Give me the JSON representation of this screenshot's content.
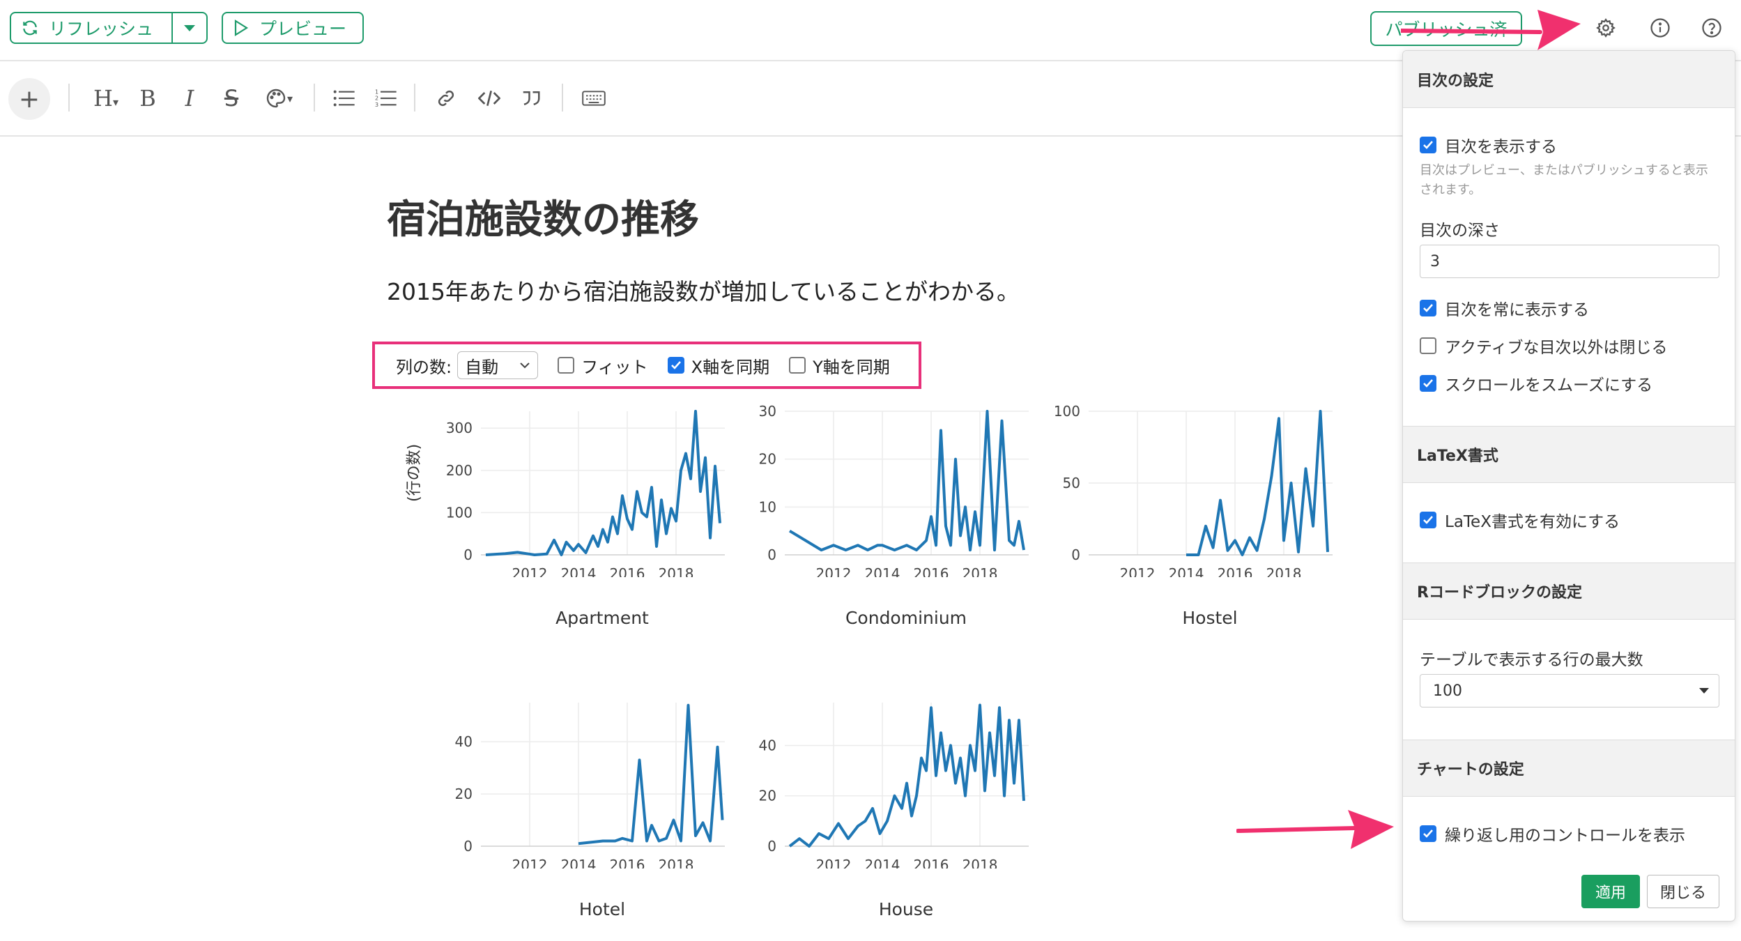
{
  "header": {
    "refresh_label": "リフレッシュ",
    "preview_label": "プレビュー",
    "publish_label": "パブリッシュ済"
  },
  "document": {
    "title": "宿泊施設数の推移",
    "description": "2015年あたりから宿泊施設数が増加していることがわかる。"
  },
  "controls": {
    "columns_label": "列の数:",
    "columns_value": "自動",
    "fit_label": "フィット",
    "fit_checked": false,
    "sync_x_label": "X軸を同期",
    "sync_x_checked": true,
    "sync_y_label": "Y軸を同期",
    "sync_y_checked": false
  },
  "y_axis_label": "(行の数)",
  "chart_data": [
    {
      "type": "line",
      "title": "Apartment",
      "ylabel": "(行の数)",
      "x_ticks": [
        "2012",
        "2014",
        "2016",
        "2018"
      ],
      "y_ticks": [
        0,
        100,
        200,
        300
      ],
      "ylim": [
        0,
        340
      ],
      "color": "#1f77b4",
      "x": [
        2010.2,
        2011.0,
        2011.5,
        2012.2,
        2012.7,
        2013.0,
        2013.3,
        2013.5,
        2013.8,
        2014.0,
        2014.3,
        2014.6,
        2014.8,
        2015.0,
        2015.2,
        2015.4,
        2015.6,
        2015.8,
        2016.0,
        2016.2,
        2016.4,
        2016.6,
        2016.8,
        2017.0,
        2017.2,
        2017.4,
        2017.6,
        2017.8,
        2018.0,
        2018.2,
        2018.4,
        2018.6,
        2018.8,
        2019.0,
        2019.2,
        2019.4,
        2019.6,
        2019.8
      ],
      "y": [
        0,
        3,
        6,
        0,
        2,
        35,
        0,
        30,
        10,
        25,
        5,
        45,
        20,
        60,
        30,
        90,
        50,
        140,
        85,
        60,
        150,
        100,
        90,
        160,
        20,
        130,
        50,
        110,
        80,
        200,
        240,
        180,
        340,
        150,
        230,
        40,
        210,
        75
      ]
    },
    {
      "type": "line",
      "title": "Condominium",
      "x_ticks": [
        "2012",
        "2014",
        "2016",
        "2018"
      ],
      "y_ticks": [
        0,
        10,
        20,
        30
      ],
      "ylim": [
        0,
        30
      ],
      "color": "#1f77b4",
      "x": [
        2010.2,
        2011.5,
        2012.0,
        2012.5,
        2013.0,
        2013.4,
        2013.8,
        2014.0,
        2014.5,
        2015.0,
        2015.4,
        2015.8,
        2016.0,
        2016.2,
        2016.4,
        2016.6,
        2016.8,
        2017.0,
        2017.2,
        2017.4,
        2017.6,
        2017.8,
        2018.0,
        2018.3,
        2018.6,
        2018.9,
        2019.2,
        2019.4,
        2019.6,
        2019.8
      ],
      "y": [
        5,
        1,
        2,
        1,
        2,
        1,
        2,
        2,
        1,
        2,
        1,
        3,
        8,
        2,
        26,
        6,
        2,
        20,
        4,
        10,
        1,
        9,
        2,
        30,
        1,
        28,
        3,
        2,
        7,
        1
      ]
    },
    {
      "type": "line",
      "title": "Hostel",
      "x_ticks": [
        "2012",
        "2014",
        "2016",
        "2018"
      ],
      "y_ticks": [
        0,
        50,
        100
      ],
      "ylim": [
        0,
        100
      ],
      "color": "#1f77b4",
      "x": [
        2014.0,
        2014.5,
        2014.8,
        2015.1,
        2015.4,
        2015.7,
        2016.0,
        2016.3,
        2016.6,
        2016.9,
        2017.2,
        2017.5,
        2017.8,
        2018.0,
        2018.3,
        2018.6,
        2018.9,
        2019.2,
        2019.5,
        2019.8
      ],
      "y": [
        0,
        0,
        20,
        5,
        38,
        3,
        10,
        0,
        12,
        3,
        25,
        55,
        95,
        10,
        50,
        2,
        60,
        20,
        100,
        2
      ]
    },
    {
      "type": "line",
      "title": "Hotel",
      "x_ticks": [
        "2012",
        "2014",
        "2016",
        "2018"
      ],
      "y_ticks": [
        0,
        20,
        40
      ],
      "ylim": [
        0,
        55
      ],
      "color": "#1f77b4",
      "x": [
        2014.0,
        2015.0,
        2015.5,
        2015.8,
        2016.2,
        2016.5,
        2016.8,
        2017.0,
        2017.3,
        2017.6,
        2017.9,
        2018.2,
        2018.5,
        2018.8,
        2019.1,
        2019.4,
        2019.7,
        2019.9
      ],
      "y": [
        1,
        2,
        2,
        3,
        2,
        33,
        2,
        8,
        2,
        3,
        10,
        2,
        54,
        4,
        9,
        2,
        38,
        10
      ]
    },
    {
      "type": "line",
      "title": "House",
      "x_ticks": [
        "2012",
        "2014",
        "2016",
        "2018"
      ],
      "y_ticks": [
        0,
        20,
        40
      ],
      "ylim": [
        0,
        57
      ],
      "color": "#1f77b4",
      "x": [
        2010.2,
        2010.6,
        2011.0,
        2011.4,
        2011.8,
        2012.2,
        2012.6,
        2013.0,
        2013.3,
        2013.6,
        2013.9,
        2014.2,
        2014.5,
        2014.8,
        2015.0,
        2015.2,
        2015.4,
        2015.6,
        2015.8,
        2016.0,
        2016.2,
        2016.4,
        2016.6,
        2016.8,
        2017.0,
        2017.2,
        2017.4,
        2017.6,
        2017.8,
        2018.0,
        2018.2,
        2018.4,
        2018.6,
        2018.8,
        2019.0,
        2019.2,
        2019.4,
        2019.6,
        2019.8
      ],
      "y": [
        0,
        3,
        0,
        5,
        3,
        9,
        3,
        8,
        10,
        15,
        5,
        10,
        20,
        15,
        25,
        12,
        20,
        35,
        30,
        55,
        28,
        45,
        30,
        40,
        25,
        35,
        20,
        40,
        30,
        56,
        22,
        45,
        28,
        55,
        20,
        50,
        25,
        50,
        18
      ]
    }
  ],
  "settings_panel": {
    "toc_section": "目次の設定",
    "toc_show_label": "目次を表示する",
    "toc_show_checked": true,
    "toc_note": "目次はプレビュー、またはパブリッシュすると表示されます。",
    "toc_depth_label": "目次の深さ",
    "toc_depth_value": "3",
    "toc_always_label": "目次を常に表示する",
    "toc_always_checked": true,
    "toc_collapse_label": "アクティブな目次以外は閉じる",
    "toc_collapse_checked": false,
    "toc_smooth_label": "スクロールをスムーズにする",
    "toc_smooth_checked": true,
    "latex_section": "LaTeX書式",
    "latex_enable_label": "LaTeX書式を有効にする",
    "latex_enable_checked": true,
    "rcode_section": "Rコードブロックの設定",
    "rcode_maxrows_label": "テーブルで表示する行の最大数",
    "rcode_maxrows_value": "100",
    "chart_section": "チャートの設定",
    "chart_repeat_label": "繰り返し用のコントロールを表示",
    "chart_repeat_checked": true,
    "apply_label": "適用",
    "close_label": "閉じる"
  },
  "accent_colors": {
    "green": "#1e9b6b",
    "highlight": "#e8307a",
    "checkbox": "#1a73e8",
    "line": "#1f77b4"
  }
}
